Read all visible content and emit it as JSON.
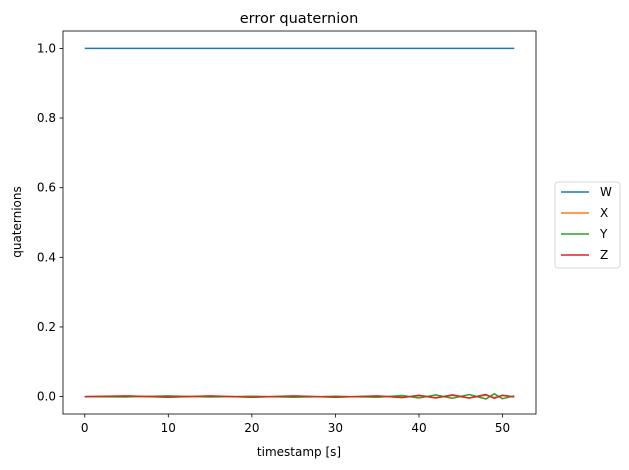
{
  "chart_data": {
    "type": "line",
    "title": "error quaternion",
    "xlabel": "timestamp [s]",
    "ylabel": "quaternions",
    "xlim": [
      -2.6,
      54.0
    ],
    "ylim": [
      -0.05,
      1.05
    ],
    "xticks": [
      0,
      10,
      20,
      30,
      40,
      50
    ],
    "xtick_labels": [
      "0",
      "10",
      "20",
      "30",
      "40",
      "50"
    ],
    "yticks": [
      0.0,
      0.2,
      0.4,
      0.6,
      0.8,
      1.0
    ],
    "ytick_labels": [
      "0.0",
      "0.2",
      "0.4",
      "0.6",
      "0.8",
      "1.0"
    ],
    "grid": false,
    "legend_position": "right-outside",
    "series": [
      {
        "name": "W",
        "color": "#1f77b4",
        "x": [
          0,
          51.4
        ],
        "y": [
          1.0,
          1.0
        ]
      },
      {
        "name": "X",
        "color": "#ff7f0e",
        "x": [
          0,
          5,
          10,
          15,
          20,
          25,
          30,
          35,
          38,
          40,
          42,
          44,
          46,
          48,
          49,
          50,
          51.4
        ],
        "y": [
          0.0,
          0.001,
          -0.001,
          0.001,
          -0.001,
          0.001,
          -0.001,
          0.001,
          -0.002,
          0.002,
          -0.003,
          0.003,
          -0.004,
          0.004,
          -0.003,
          0.003,
          -0.001
        ]
      },
      {
        "name": "Y",
        "color": "#2ca02c",
        "x": [
          0,
          5,
          10,
          15,
          20,
          25,
          30,
          35,
          38,
          40,
          42,
          44,
          46,
          48,
          49,
          50,
          51.4
        ],
        "y": [
          0.0,
          -0.001,
          0.002,
          -0.001,
          0.001,
          -0.002,
          0.001,
          -0.002,
          0.003,
          -0.004,
          0.005,
          -0.005,
          0.006,
          -0.007,
          0.008,
          -0.006,
          0.002
        ]
      },
      {
        "name": "Z",
        "color": "#d62728",
        "x": [
          0,
          5,
          10,
          15,
          20,
          25,
          30,
          35,
          38,
          40,
          42,
          44,
          46,
          48,
          49,
          50,
          51.4
        ],
        "y": [
          0.0,
          0.002,
          -0.002,
          0.002,
          -0.002,
          0.002,
          -0.002,
          0.002,
          -0.003,
          0.004,
          -0.004,
          0.005,
          -0.004,
          0.006,
          -0.005,
          0.004,
          -0.001
        ]
      }
    ]
  }
}
